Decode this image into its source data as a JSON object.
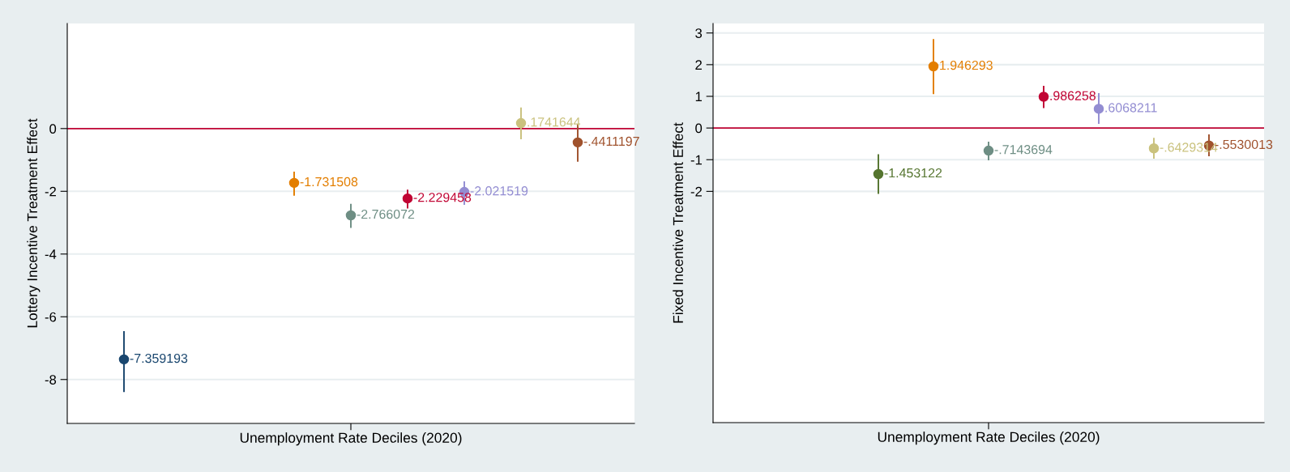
{
  "chart_data": [
    {
      "type": "scatter",
      "xlabel": "Unemployment Rate Deciles (2020)",
      "ylabel": "Lottery Incentive Treatment Effect",
      "categories": [
        null,
        null,
        null,
        null,
        null,
        null,
        null,
        null,
        null
      ],
      "ylim": [
        -9.4,
        3.35
      ],
      "yticks": [
        0,
        -2,
        -4,
        -6,
        -8
      ],
      "tick_labels": "y",
      "grid": "y",
      "marker": "circle",
      "ref_lines": [
        {
          "axis": "y",
          "value": 0,
          "color": "#c10534"
        }
      ],
      "series": [
        {
          "values": [
            -7.359193,
            null,
            null,
            -1.731508,
            -2.766072,
            -2.229458,
            -2.021519,
            0.1741644,
            -0.4411197
          ],
          "colors": [
            "#1a476f",
            null,
            null,
            "#e37e00",
            "#6e8e84",
            "#c10534",
            "#938dd2",
            "#cac27e",
            "#a0522d"
          ],
          "errors": [
            [
              -8.4,
              -6.46
            ],
            null,
            null,
            [
              -2.14,
              -1.37
            ],
            [
              -3.17,
              -2.4
            ],
            [
              -2.55,
              -1.95
            ],
            [
              -2.43,
              -1.68
            ],
            [
              -0.34,
              0.67
            ],
            [
              -1.06,
              0.14
            ]
          ],
          "value_labels": [
            "-7.359193",
            null,
            null,
            "-1.731508",
            "-2.766072",
            "-2.229458",
            "-2.021519",
            ".1741644",
            "-.4411197"
          ]
        }
      ]
    },
    {
      "type": "scatter",
      "xlabel": "Unemployment Rate Deciles (2020)",
      "ylabel": "Fixed Incentive Treatment Effect",
      "categories": [
        null,
        null,
        null,
        null,
        null,
        null,
        null,
        null,
        null
      ],
      "ylim": [
        -9.3,
        3.3
      ],
      "yticks": [
        3,
        2,
        1,
        0,
        -1,
        -2
      ],
      "tick_labels": "y",
      "grid": "y",
      "marker": "circle",
      "ref_lines": [
        {
          "axis": "y",
          "value": 0,
          "color": "#c10534"
        }
      ],
      "series": [
        {
          "values": [
            null,
            null,
            -1.453122,
            1.946293,
            -0.7143694,
            0.986258,
            0.6068211,
            -0.6429314,
            -0.5530013
          ],
          "colors": [
            null,
            null,
            "#55752f",
            "#e37e00",
            "#6e8e84",
            "#c10534",
            "#938dd2",
            "#cac27e",
            "#a0522d"
          ],
          "errors": [
            null,
            null,
            [
              -2.08,
              -0.83
            ],
            [
              1.07,
              2.81
            ],
            [
              -1.02,
              -0.43
            ],
            [
              0.63,
              1.33
            ],
            [
              0.13,
              1.1
            ],
            [
              -0.97,
              -0.31
            ],
            [
              -0.89,
              -0.2
            ]
          ],
          "value_labels": [
            null,
            null,
            "-1.453122",
            "1.946293",
            "-.7143694",
            ".986258",
            ".6068211",
            "-.6429314",
            "-.5530013"
          ]
        }
      ]
    }
  ]
}
